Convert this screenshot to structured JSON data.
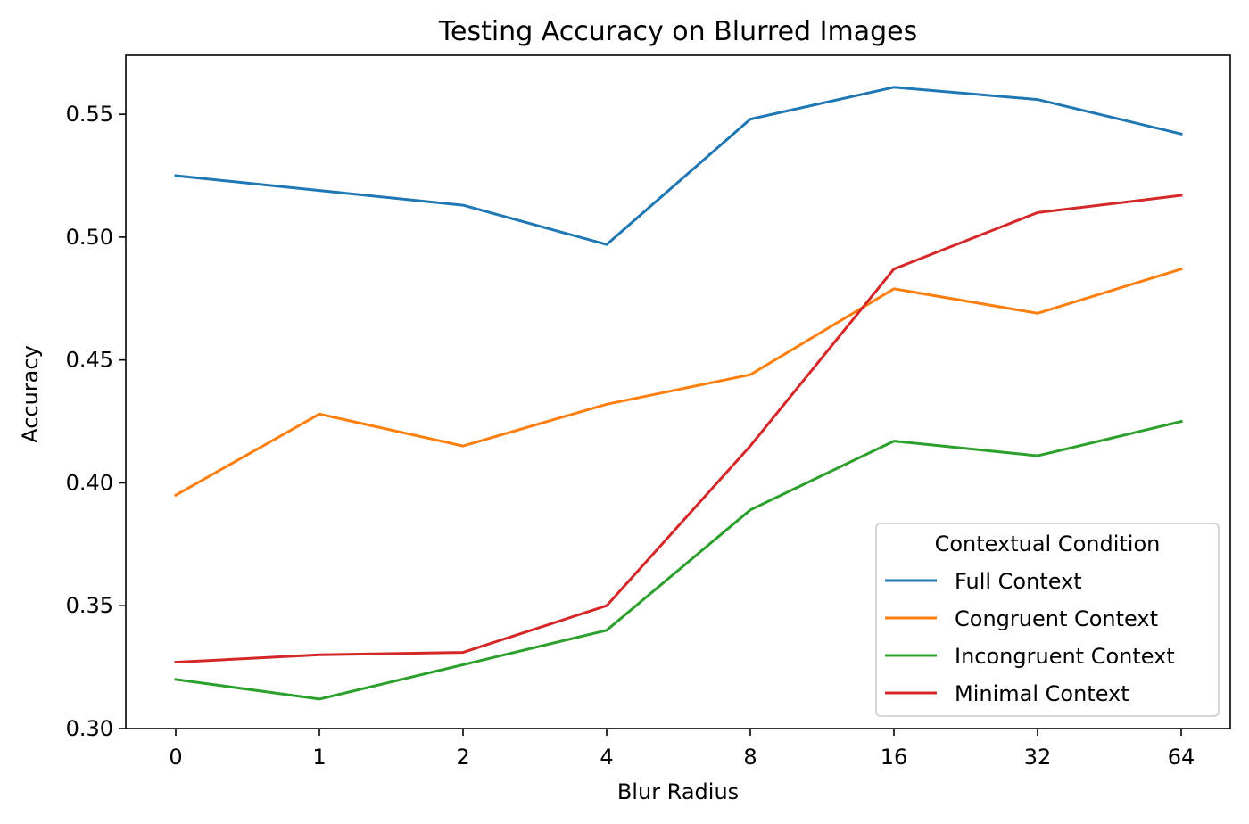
{
  "chart_data": {
    "type": "line",
    "title": "Testing Accuracy on Blurred Images",
    "xlabel": "Blur Radius",
    "ylabel": "Accuracy",
    "categories": [
      "0",
      "1",
      "2",
      "4",
      "8",
      "16",
      "32",
      "64"
    ],
    "ylim": [
      0.3,
      0.574
    ],
    "yticks": [
      "0.30",
      "0.35",
      "0.40",
      "0.45",
      "0.50",
      "0.55"
    ],
    "grid": false,
    "legend": {
      "title": "Contextual Condition",
      "placement": "lower-right"
    },
    "series": [
      {
        "name": "Full Context",
        "color": "#1f77b4",
        "values": [
          0.525,
          0.519,
          0.513,
          0.497,
          0.548,
          0.561,
          0.556,
          0.542
        ]
      },
      {
        "name": "Congruent Context",
        "color": "#ff7f0e",
        "values": [
          0.395,
          0.428,
          0.415,
          0.432,
          0.444,
          0.479,
          0.469,
          0.487
        ]
      },
      {
        "name": "Incongruent Context",
        "color": "#2ca02c",
        "values": [
          0.32,
          0.312,
          0.326,
          0.34,
          0.389,
          0.417,
          0.411,
          0.425
        ]
      },
      {
        "name": "Minimal Context",
        "color": "#d62728",
        "values": [
          0.327,
          0.33,
          0.331,
          0.35,
          0.415,
          0.487,
          0.51,
          0.517
        ]
      }
    ]
  }
}
